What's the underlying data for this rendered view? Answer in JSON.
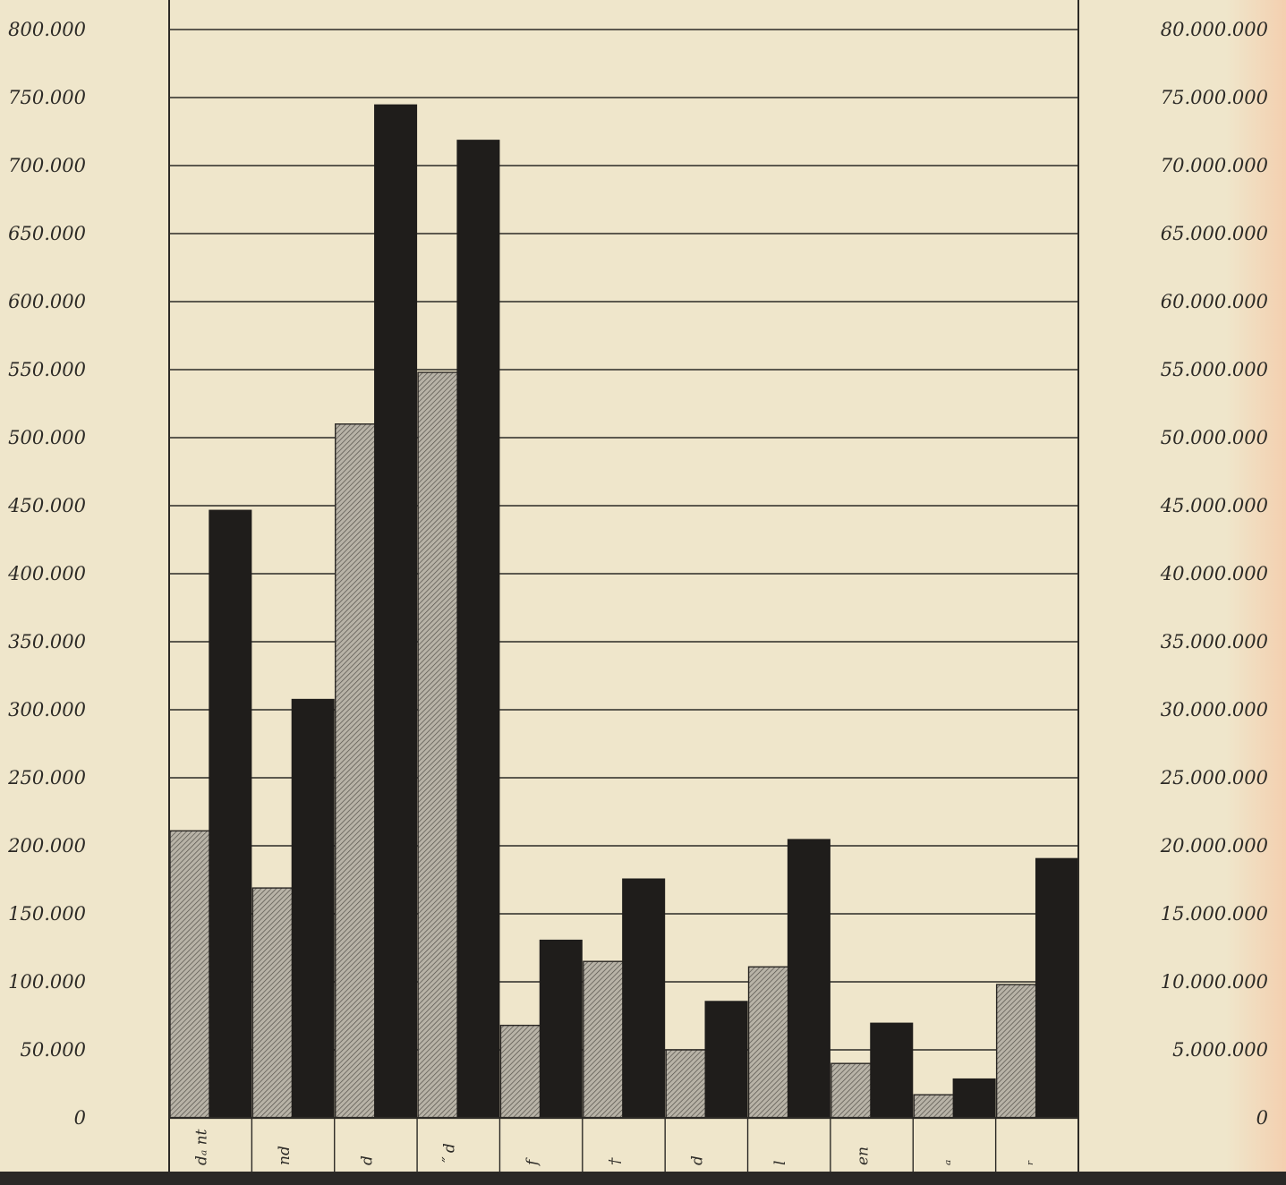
{
  "chart_data": {
    "type": "bar",
    "title": "",
    "xlabel": "",
    "ylabel": "",
    "categories": [
      "dₐ nt",
      "nd",
      "d",
      "˝ d",
      "f",
      "†",
      "d",
      "l",
      "en",
      "ₐ",
      "ᵣ"
    ],
    "series": [
      {
        "values": [
          211000,
          169000,
          510000,
          548000,
          68000,
          115000,
          50000,
          111000,
          40000,
          17000,
          98000
        ]
      },
      {
        "values": [
          447000,
          308000,
          745000,
          719000,
          131000,
          176000,
          86000,
          205000,
          70000,
          29000,
          191000
        ]
      }
    ],
    "ylim": [
      0,
      800000
    ],
    "yticks_left": [
      "0",
      "50.000",
      "100.000",
      "150.000",
      "200.000",
      "250.000",
      "300.000",
      "350.000",
      "400.000",
      "450.000",
      "500.000",
      "550.000",
      "600.000",
      "650.000",
      "700.000",
      "750.000",
      "800.000"
    ],
    "yticks_right": [
      "0",
      "5.000.000",
      "10.000.000",
      "15.000.000",
      "20.000.000",
      "25.000.000",
      "30.000.000",
      "35.000.000",
      "40.000.000",
      "45.000.000",
      "50.000.000",
      "55.000.000",
      "60.000.000",
      "65.000.000",
      "70.000.000",
      "75.000.000",
      "80.000.000"
    ],
    "grid": true,
    "legend": "none",
    "colors": {
      "light": "#a9a59c",
      "dark": "#1f1d1b",
      "paper": "#efe6cb",
      "ink": "#2c2a26"
    }
  }
}
